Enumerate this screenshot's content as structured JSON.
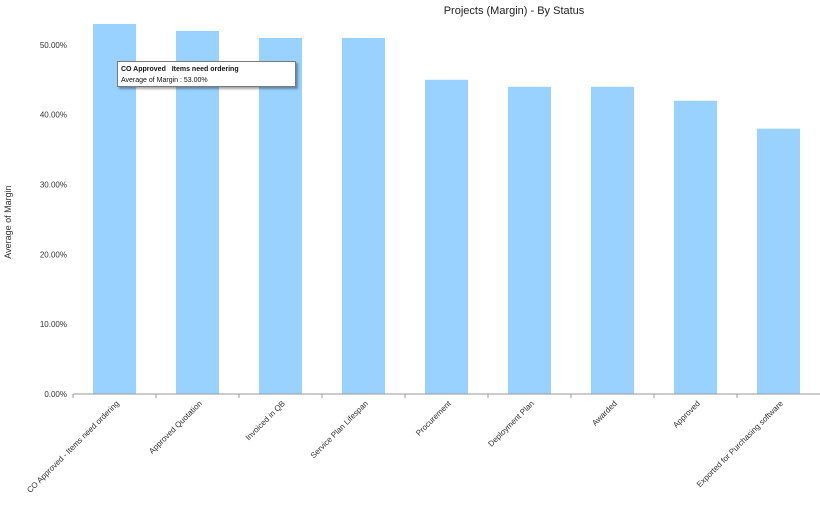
{
  "chart_data": {
    "type": "bar",
    "title": "Projects (Margin) - By Status",
    "xlabel": "",
    "ylabel": "Average of Margin",
    "categories": [
      "CO Approved - Items need ordering",
      "Approved Quotation",
      "Invoiced in QB",
      "Service Plan Lifespan",
      "Procurement",
      "Deployment Plan",
      "Awarded",
      "Approved",
      "Exported for Purchasing software"
    ],
    "values": [
      53,
      52,
      51,
      51,
      45,
      44,
      44,
      42,
      38
    ],
    "ylim": [
      0,
      55
    ],
    "y_ticks": [
      "0.00%",
      "10.00%",
      "20.00%",
      "30.00%",
      "40.00%",
      "50.00%"
    ],
    "y_tick_values": [
      0,
      10,
      20,
      30,
      40,
      50
    ],
    "grid": false,
    "bar_color": "#99d1ff"
  },
  "tooltip": {
    "title": "CO Approved   Items need ordering",
    "row": "Average of Margin : 53.00%"
  }
}
